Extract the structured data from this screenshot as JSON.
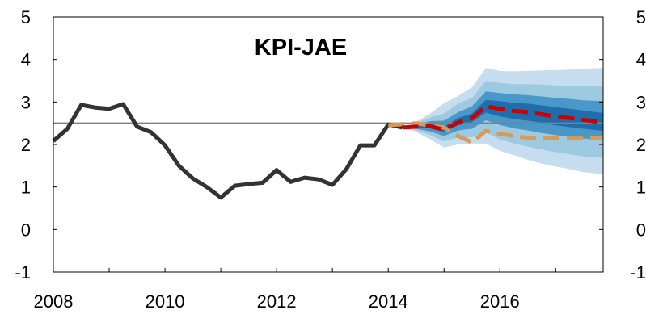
{
  "chart_data": {
    "type": "line",
    "title": "KPI-JAE",
    "xlabel": "",
    "ylabel": "",
    "xlim": [
      2008,
      2017.85
    ],
    "ylim": [
      -1,
      5
    ],
    "x_ticks": [
      2008,
      2010,
      2012,
      2014,
      2016
    ],
    "x_tick_labels": [
      "2008",
      "2010",
      "2012",
      "2014",
      "2016"
    ],
    "y_ticks": [
      -1,
      0,
      1,
      2,
      3,
      4,
      5
    ],
    "y_tick_labels": [
      "-1",
      "0",
      "1",
      "2",
      "3",
      "4",
      "5"
    ],
    "secondary_y_axis": true,
    "grid": false,
    "legend": "none",
    "reference_line": {
      "value": 2.5,
      "color": "#808080"
    },
    "series": [
      {
        "role": "historical",
        "style": "solid",
        "color": "#333333",
        "x": [
          2008.0,
          2008.25,
          2008.5,
          2008.75,
          2009.0,
          2009.25,
          2009.5,
          2009.75,
          2010.0,
          2010.25,
          2010.5,
          2010.75,
          2011.0,
          2011.25,
          2011.5,
          2011.75,
          2012.0,
          2012.25,
          2012.5,
          2012.75,
          2013.0,
          2013.25,
          2013.5,
          2013.75,
          2014.0,
          2014.25
        ],
        "y": [
          2.08,
          2.37,
          2.93,
          2.87,
          2.84,
          2.95,
          2.42,
          2.29,
          1.98,
          1.5,
          1.2,
          1.0,
          0.75,
          1.03,
          1.07,
          1.1,
          1.4,
          1.12,
          1.22,
          1.18,
          1.05,
          1.42,
          1.98,
          1.98,
          2.47,
          2.4
        ]
      },
      {
        "role": "forecast",
        "style": "dashed",
        "color": "#cc0000",
        "x": [
          2014.25,
          2014.5,
          2014.75,
          2015.0,
          2015.25,
          2015.5,
          2015.75,
          2016.0,
          2016.25,
          2016.5,
          2016.75,
          2017.0,
          2017.25,
          2017.5,
          2017.85
        ],
        "y": [
          2.4,
          2.42,
          2.43,
          2.35,
          2.52,
          2.62,
          2.9,
          2.84,
          2.79,
          2.76,
          2.71,
          2.66,
          2.62,
          2.58,
          2.52
        ]
      },
      {
        "role": "alternative-forecast",
        "style": "dashed",
        "color": "#d99a55",
        "x": [
          2014.0,
          2014.25,
          2014.5,
          2014.75,
          2015.0,
          2015.25,
          2015.5,
          2015.75,
          2016.0,
          2016.25,
          2016.5,
          2016.75,
          2017.0,
          2017.25,
          2017.5,
          2017.85
        ],
        "y": [
          2.45,
          2.48,
          2.5,
          2.45,
          2.4,
          2.2,
          2.05,
          2.32,
          2.25,
          2.2,
          2.16,
          2.15,
          2.14,
          2.14,
          2.14,
          2.15
        ]
      }
    ],
    "fan_bands": {
      "x": [
        2014.25,
        2014.5,
        2014.75,
        2015.0,
        2015.25,
        2015.5,
        2015.75,
        2016.0,
        2016.25,
        2016.5,
        2016.75,
        2017.0,
        2017.25,
        2017.5,
        2017.85
      ],
      "center": [
        2.4,
        2.42,
        2.43,
        2.35,
        2.52,
        2.62,
        2.9,
        2.84,
        2.79,
        2.76,
        2.71,
        2.66,
        2.62,
        2.58,
        2.52
      ],
      "bands": [
        {
          "color": "#c6ddf0",
          "lower": [
            2.4,
            2.3,
            2.12,
            1.93,
            2.0,
            2.02,
            2.02,
            1.85,
            1.75,
            1.64,
            1.55,
            1.48,
            1.42,
            1.35,
            1.3
          ],
          "upper": [
            2.4,
            2.54,
            2.73,
            2.97,
            3.14,
            3.35,
            3.8,
            3.73,
            3.72,
            3.73,
            3.74,
            3.75,
            3.76,
            3.78,
            3.8
          ]
        },
        {
          "color": "#9ecae1",
          "lower": [
            2.4,
            2.34,
            2.22,
            2.07,
            2.16,
            2.17,
            2.28,
            2.12,
            2.02,
            1.95,
            1.88,
            1.82,
            1.77,
            1.72,
            1.68
          ],
          "upper": [
            2.4,
            2.5,
            2.64,
            2.73,
            2.96,
            3.1,
            3.5,
            3.45,
            3.42,
            3.42,
            3.41,
            3.39,
            3.38,
            3.38,
            3.38
          ]
        },
        {
          "color": "#4a98c9",
          "lower": [
            2.4,
            2.37,
            2.31,
            2.2,
            2.33,
            2.37,
            2.57,
            2.46,
            2.38,
            2.33,
            2.27,
            2.22,
            2.18,
            2.14,
            2.1
          ],
          "upper": [
            2.4,
            2.47,
            2.55,
            2.56,
            2.76,
            2.9,
            3.25,
            3.21,
            3.18,
            3.16,
            3.13,
            3.1,
            3.07,
            3.04,
            3.02
          ]
        },
        {
          "color": "#1f6eab",
          "lower": [
            2.4,
            2.4,
            2.38,
            2.3,
            2.45,
            2.53,
            2.75,
            2.66,
            2.6,
            2.56,
            2.51,
            2.45,
            2.41,
            2.37,
            2.32
          ],
          "upper": [
            2.4,
            2.45,
            2.48,
            2.42,
            2.62,
            2.73,
            3.05,
            3.02,
            2.98,
            2.96,
            2.92,
            2.88,
            2.84,
            2.8,
            2.74
          ]
        }
      ]
    }
  }
}
